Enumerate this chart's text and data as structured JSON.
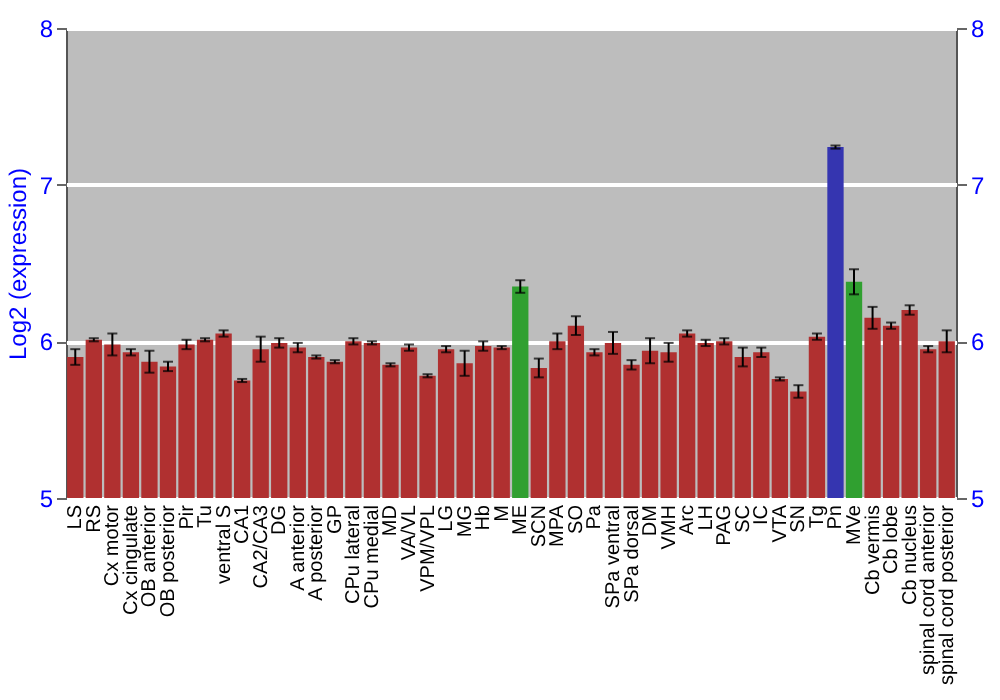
{
  "chart_data": {
    "type": "bar",
    "ylabel": "Log2 (expression)",
    "categories": [
      "LS",
      "RS",
      "Cx motor",
      "Cx cingulate",
      "OB anterior",
      "OB posterior",
      "Pir",
      "Tu",
      "ventral S",
      "CA1",
      "CA2/CA3",
      "DG",
      "A anterior",
      "A posterior",
      "GP",
      "CPu lateral",
      "CPu medial",
      "MD",
      "VA/VL",
      "VPM/VPL",
      "LG",
      "MG",
      "Hb",
      "M",
      "ME",
      "SCN",
      "MPA",
      "SO",
      "Pa",
      "SPa ventral",
      "SPa dorsal",
      "DM",
      "VMH",
      "Arc",
      "LH",
      "PAG",
      "SC",
      "IC",
      "VTA",
      "SN",
      "Tg",
      "Pn",
      "MVe",
      "Cb vermis",
      "Cb lobe",
      "Cb nucleus",
      "spinal cord anterior",
      "spinal cord posterior"
    ],
    "values": [
      5.9,
      6.01,
      5.98,
      5.93,
      5.87,
      5.84,
      5.98,
      6.01,
      6.05,
      5.75,
      5.95,
      5.99,
      5.96,
      5.9,
      5.87,
      6.0,
      5.99,
      5.85,
      5.96,
      5.78,
      5.95,
      5.86,
      5.97,
      5.96,
      6.35,
      5.83,
      6.0,
      6.1,
      5.93,
      5.99,
      5.85,
      5.94,
      5.93,
      6.05,
      5.99,
      6.0,
      5.9,
      5.93,
      5.76,
      5.68,
      6.03,
      7.24,
      6.38,
      6.15,
      6.1,
      6.2,
      5.95,
      6.0
    ],
    "errors": [
      0.05,
      0.01,
      0.07,
      0.02,
      0.07,
      0.03,
      0.03,
      0.01,
      0.02,
      0.01,
      0.08,
      0.03,
      0.03,
      0.01,
      0.01,
      0.02,
      0.01,
      0.01,
      0.02,
      0.01,
      0.02,
      0.08,
      0.03,
      0.01,
      0.04,
      0.06,
      0.05,
      0.06,
      0.02,
      0.07,
      0.03,
      0.08,
      0.06,
      0.02,
      0.02,
      0.02,
      0.06,
      0.03,
      0.01,
      0.04,
      0.02,
      0.01,
      0.08,
      0.07,
      0.02,
      0.03,
      0.02,
      0.07
    ],
    "colors": [
      "#b03030",
      "#b03030",
      "#b03030",
      "#b03030",
      "#b03030",
      "#b03030",
      "#b03030",
      "#b03030",
      "#b03030",
      "#b03030",
      "#b03030",
      "#b03030",
      "#b03030",
      "#b03030",
      "#b03030",
      "#b03030",
      "#b03030",
      "#b03030",
      "#b03030",
      "#b03030",
      "#b03030",
      "#b03030",
      "#b03030",
      "#b03030",
      "#30a030",
      "#b03030",
      "#b03030",
      "#b03030",
      "#b03030",
      "#b03030",
      "#b03030",
      "#b03030",
      "#b03030",
      "#b03030",
      "#b03030",
      "#b03030",
      "#b03030",
      "#b03030",
      "#b03030",
      "#b03030",
      "#b03030",
      "#3535b0",
      "#30a030",
      "#b03030",
      "#b03030",
      "#b03030",
      "#b03030",
      "#b03030"
    ],
    "ylim": [
      5,
      8
    ],
    "yticks": [
      5,
      6,
      7,
      8
    ],
    "y2lim": [
      5,
      8
    ],
    "y2ticks": [
      5,
      6,
      7,
      8
    ],
    "grid": "y"
  }
}
